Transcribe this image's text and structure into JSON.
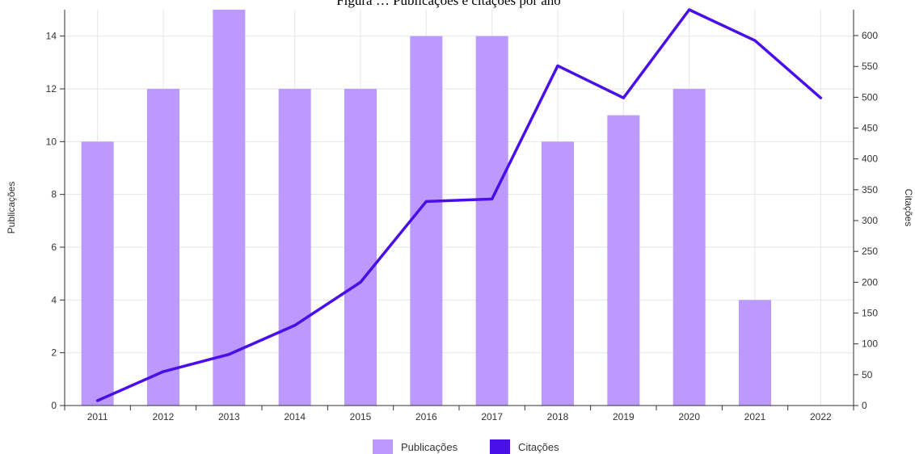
{
  "colors": {
    "publicacoes": "#bb99ff",
    "citacoes": "#4a0ee8",
    "grid": "#e6e6e6",
    "axis": "#333333"
  },
  "chart_data": {
    "type": "bar",
    "title": "Figura … Publicações e citações por ano",
    "categories": [
      "2011",
      "2012",
      "2013",
      "2014",
      "2015",
      "2016",
      "2017",
      "2018",
      "2019",
      "2020",
      "2021",
      "2022"
    ],
    "series": [
      {
        "name": "Publicações",
        "type": "bar",
        "axis": "left",
        "values": [
          10,
          12,
          15,
          12,
          12,
          14,
          14,
          10,
          11,
          12,
          4,
          0
        ]
      },
      {
        "name": "Citações",
        "type": "line",
        "axis": "right",
        "values": [
          8,
          55,
          83,
          130,
          200,
          331,
          335,
          551,
          499,
          642,
          592,
          499
        ]
      }
    ],
    "ylabel": "Publicações",
    "y2label": "Citações",
    "ylim": [
      0,
      15
    ],
    "y2lim": [
      0,
      642
    ],
    "yticks": [
      0,
      2,
      4,
      6,
      8,
      10,
      12,
      14
    ],
    "y2ticks": [
      0,
      50,
      100,
      150,
      200,
      250,
      300,
      350,
      400,
      450,
      500,
      550,
      600
    ],
    "grid": true,
    "legend_position": "bottom-center"
  }
}
